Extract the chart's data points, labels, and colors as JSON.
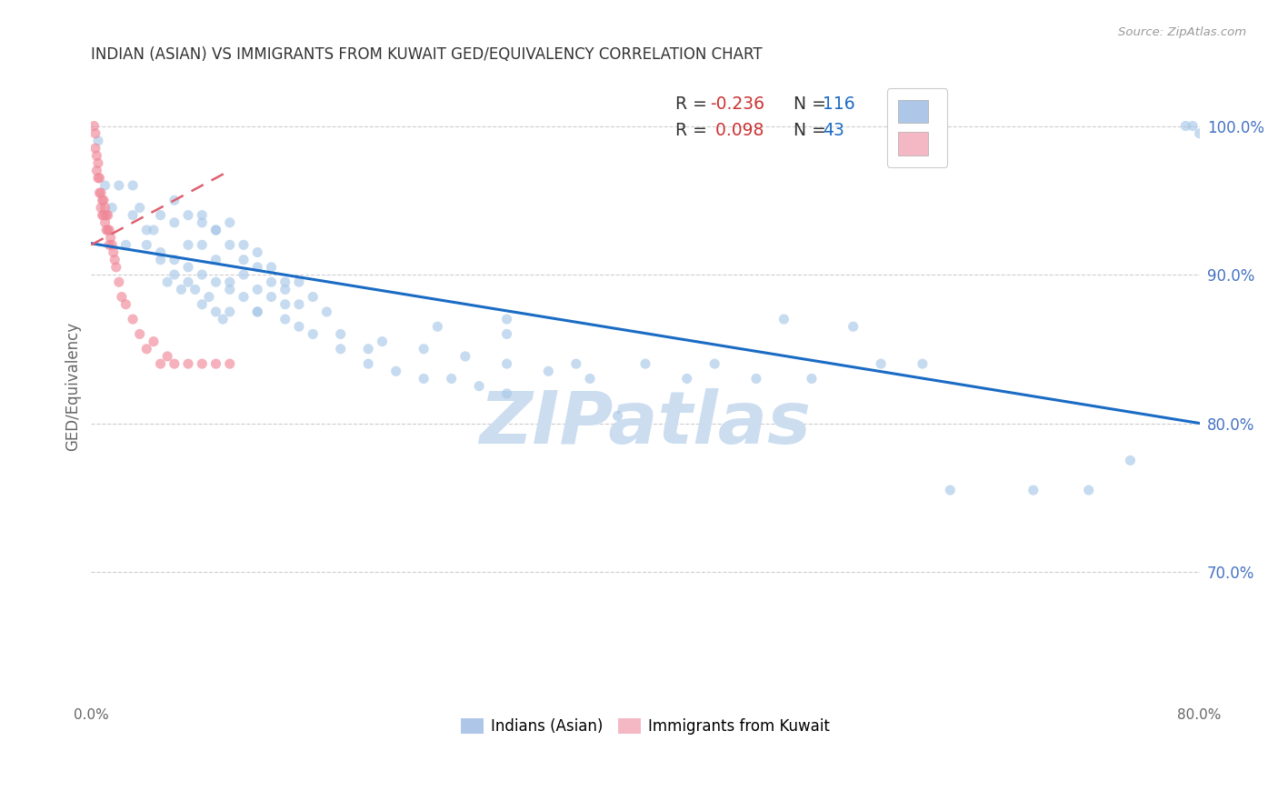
{
  "title": "INDIAN (ASIAN) VS IMMIGRANTS FROM KUWAIT GED/EQUIVALENCY CORRELATION CHART",
  "source": "Source: ZipAtlas.com",
  "ylabel": "GED/Equivalency",
  "x_min": 0.0,
  "x_max": 0.8,
  "y_min": 0.615,
  "y_max": 1.035,
  "y_ticks": [
    0.7,
    0.8,
    0.9,
    1.0
  ],
  "y_tick_labels": [
    "70.0%",
    "80.0%",
    "90.0%",
    "100.0%"
  ],
  "watermark": "ZIPatlas",
  "blue_scatter_x": [
    0.005,
    0.01,
    0.015,
    0.02,
    0.025,
    0.03,
    0.035,
    0.04,
    0.045,
    0.05,
    0.055,
    0.06,
    0.065,
    0.07,
    0.075,
    0.08,
    0.085,
    0.09,
    0.095,
    0.1,
    0.03,
    0.04,
    0.05,
    0.06,
    0.07,
    0.08,
    0.09,
    0.1,
    0.11,
    0.12,
    0.05,
    0.06,
    0.07,
    0.08,
    0.09,
    0.1,
    0.11,
    0.12,
    0.13,
    0.14,
    0.06,
    0.07,
    0.08,
    0.09,
    0.1,
    0.11,
    0.12,
    0.13,
    0.14,
    0.15,
    0.08,
    0.09,
    0.1,
    0.11,
    0.12,
    0.13,
    0.14,
    0.15,
    0.16,
    0.17,
    0.12,
    0.14,
    0.16,
    0.18,
    0.2,
    0.22,
    0.24,
    0.26,
    0.28,
    0.3,
    0.15,
    0.18,
    0.21,
    0.24,
    0.27,
    0.3,
    0.33,
    0.36,
    0.2,
    0.25,
    0.3,
    0.35,
    0.4,
    0.45,
    0.5,
    0.55,
    0.6,
    0.3,
    0.38,
    0.43,
    0.48,
    0.52,
    0.57,
    0.62,
    0.68,
    0.72,
    0.75,
    0.79,
    0.795,
    0.8
  ],
  "blue_scatter_y": [
    0.99,
    0.96,
    0.945,
    0.96,
    0.92,
    0.96,
    0.945,
    0.93,
    0.93,
    0.91,
    0.895,
    0.9,
    0.89,
    0.905,
    0.89,
    0.88,
    0.885,
    0.875,
    0.87,
    0.89,
    0.94,
    0.92,
    0.915,
    0.91,
    0.895,
    0.9,
    0.895,
    0.875,
    0.885,
    0.875,
    0.94,
    0.935,
    0.92,
    0.92,
    0.91,
    0.895,
    0.9,
    0.89,
    0.885,
    0.88,
    0.95,
    0.94,
    0.935,
    0.93,
    0.92,
    0.91,
    0.905,
    0.895,
    0.89,
    0.88,
    0.94,
    0.93,
    0.935,
    0.92,
    0.915,
    0.905,
    0.895,
    0.895,
    0.885,
    0.875,
    0.875,
    0.87,
    0.86,
    0.85,
    0.84,
    0.835,
    0.83,
    0.83,
    0.825,
    0.82,
    0.865,
    0.86,
    0.855,
    0.85,
    0.845,
    0.84,
    0.835,
    0.83,
    0.85,
    0.865,
    0.87,
    0.84,
    0.84,
    0.84,
    0.87,
    0.865,
    0.84,
    0.86,
    0.805,
    0.83,
    0.83,
    0.83,
    0.84,
    0.755,
    0.755,
    0.755,
    0.775,
    1.0,
    1.0,
    0.995
  ],
  "pink_scatter_x": [
    0.002,
    0.003,
    0.003,
    0.004,
    0.004,
    0.005,
    0.005,
    0.006,
    0.006,
    0.007,
    0.007,
    0.008,
    0.008,
    0.009,
    0.009,
    0.01,
    0.01,
    0.011,
    0.011,
    0.012,
    0.012,
    0.013,
    0.013,
    0.014,
    0.015,
    0.016,
    0.017,
    0.018,
    0.02,
    0.022,
    0.025,
    0.03,
    0.035,
    0.04,
    0.05,
    0.06,
    0.07,
    0.08,
    0.09,
    0.1,
    0.045,
    0.055
  ],
  "pink_scatter_y": [
    1.0,
    0.995,
    0.985,
    0.98,
    0.97,
    0.975,
    0.965,
    0.965,
    0.955,
    0.955,
    0.945,
    0.95,
    0.94,
    0.95,
    0.94,
    0.945,
    0.935,
    0.94,
    0.93,
    0.94,
    0.93,
    0.93,
    0.92,
    0.925,
    0.92,
    0.915,
    0.91,
    0.905,
    0.895,
    0.885,
    0.88,
    0.87,
    0.86,
    0.85,
    0.84,
    0.84,
    0.84,
    0.84,
    0.84,
    0.84,
    0.855,
    0.845
  ],
  "blue_line_x": [
    0.0,
    0.8
  ],
  "blue_line_y": [
    0.921,
    0.8
  ],
  "pink_line_x": [
    0.0,
    0.1
  ],
  "pink_line_y": [
    0.92,
    0.97
  ],
  "background_color": "#ffffff",
  "scatter_alpha": 0.65,
  "scatter_size": 65,
  "blue_color": "#a8c8e8",
  "pink_color": "#f08898",
  "blue_line_color": "#1a6bc4",
  "pink_line_color": "#e06070",
  "grid_color": "#c8c8c8",
  "title_color": "#333333",
  "axis_label_color": "#666666",
  "right_tick_color": "#4472c4",
  "watermark_color": "#ccddf0",
  "legend_r1": "-0.236",
  "legend_n1": "116",
  "legend_r2": "0.098",
  "legend_n2": "43",
  "legend_label1": "Indians (Asian)",
  "legend_label2": "Immigrants from Kuwait",
  "legend_box_color1": "#aec6e8",
  "legend_box_color2": "#f4b8c4"
}
